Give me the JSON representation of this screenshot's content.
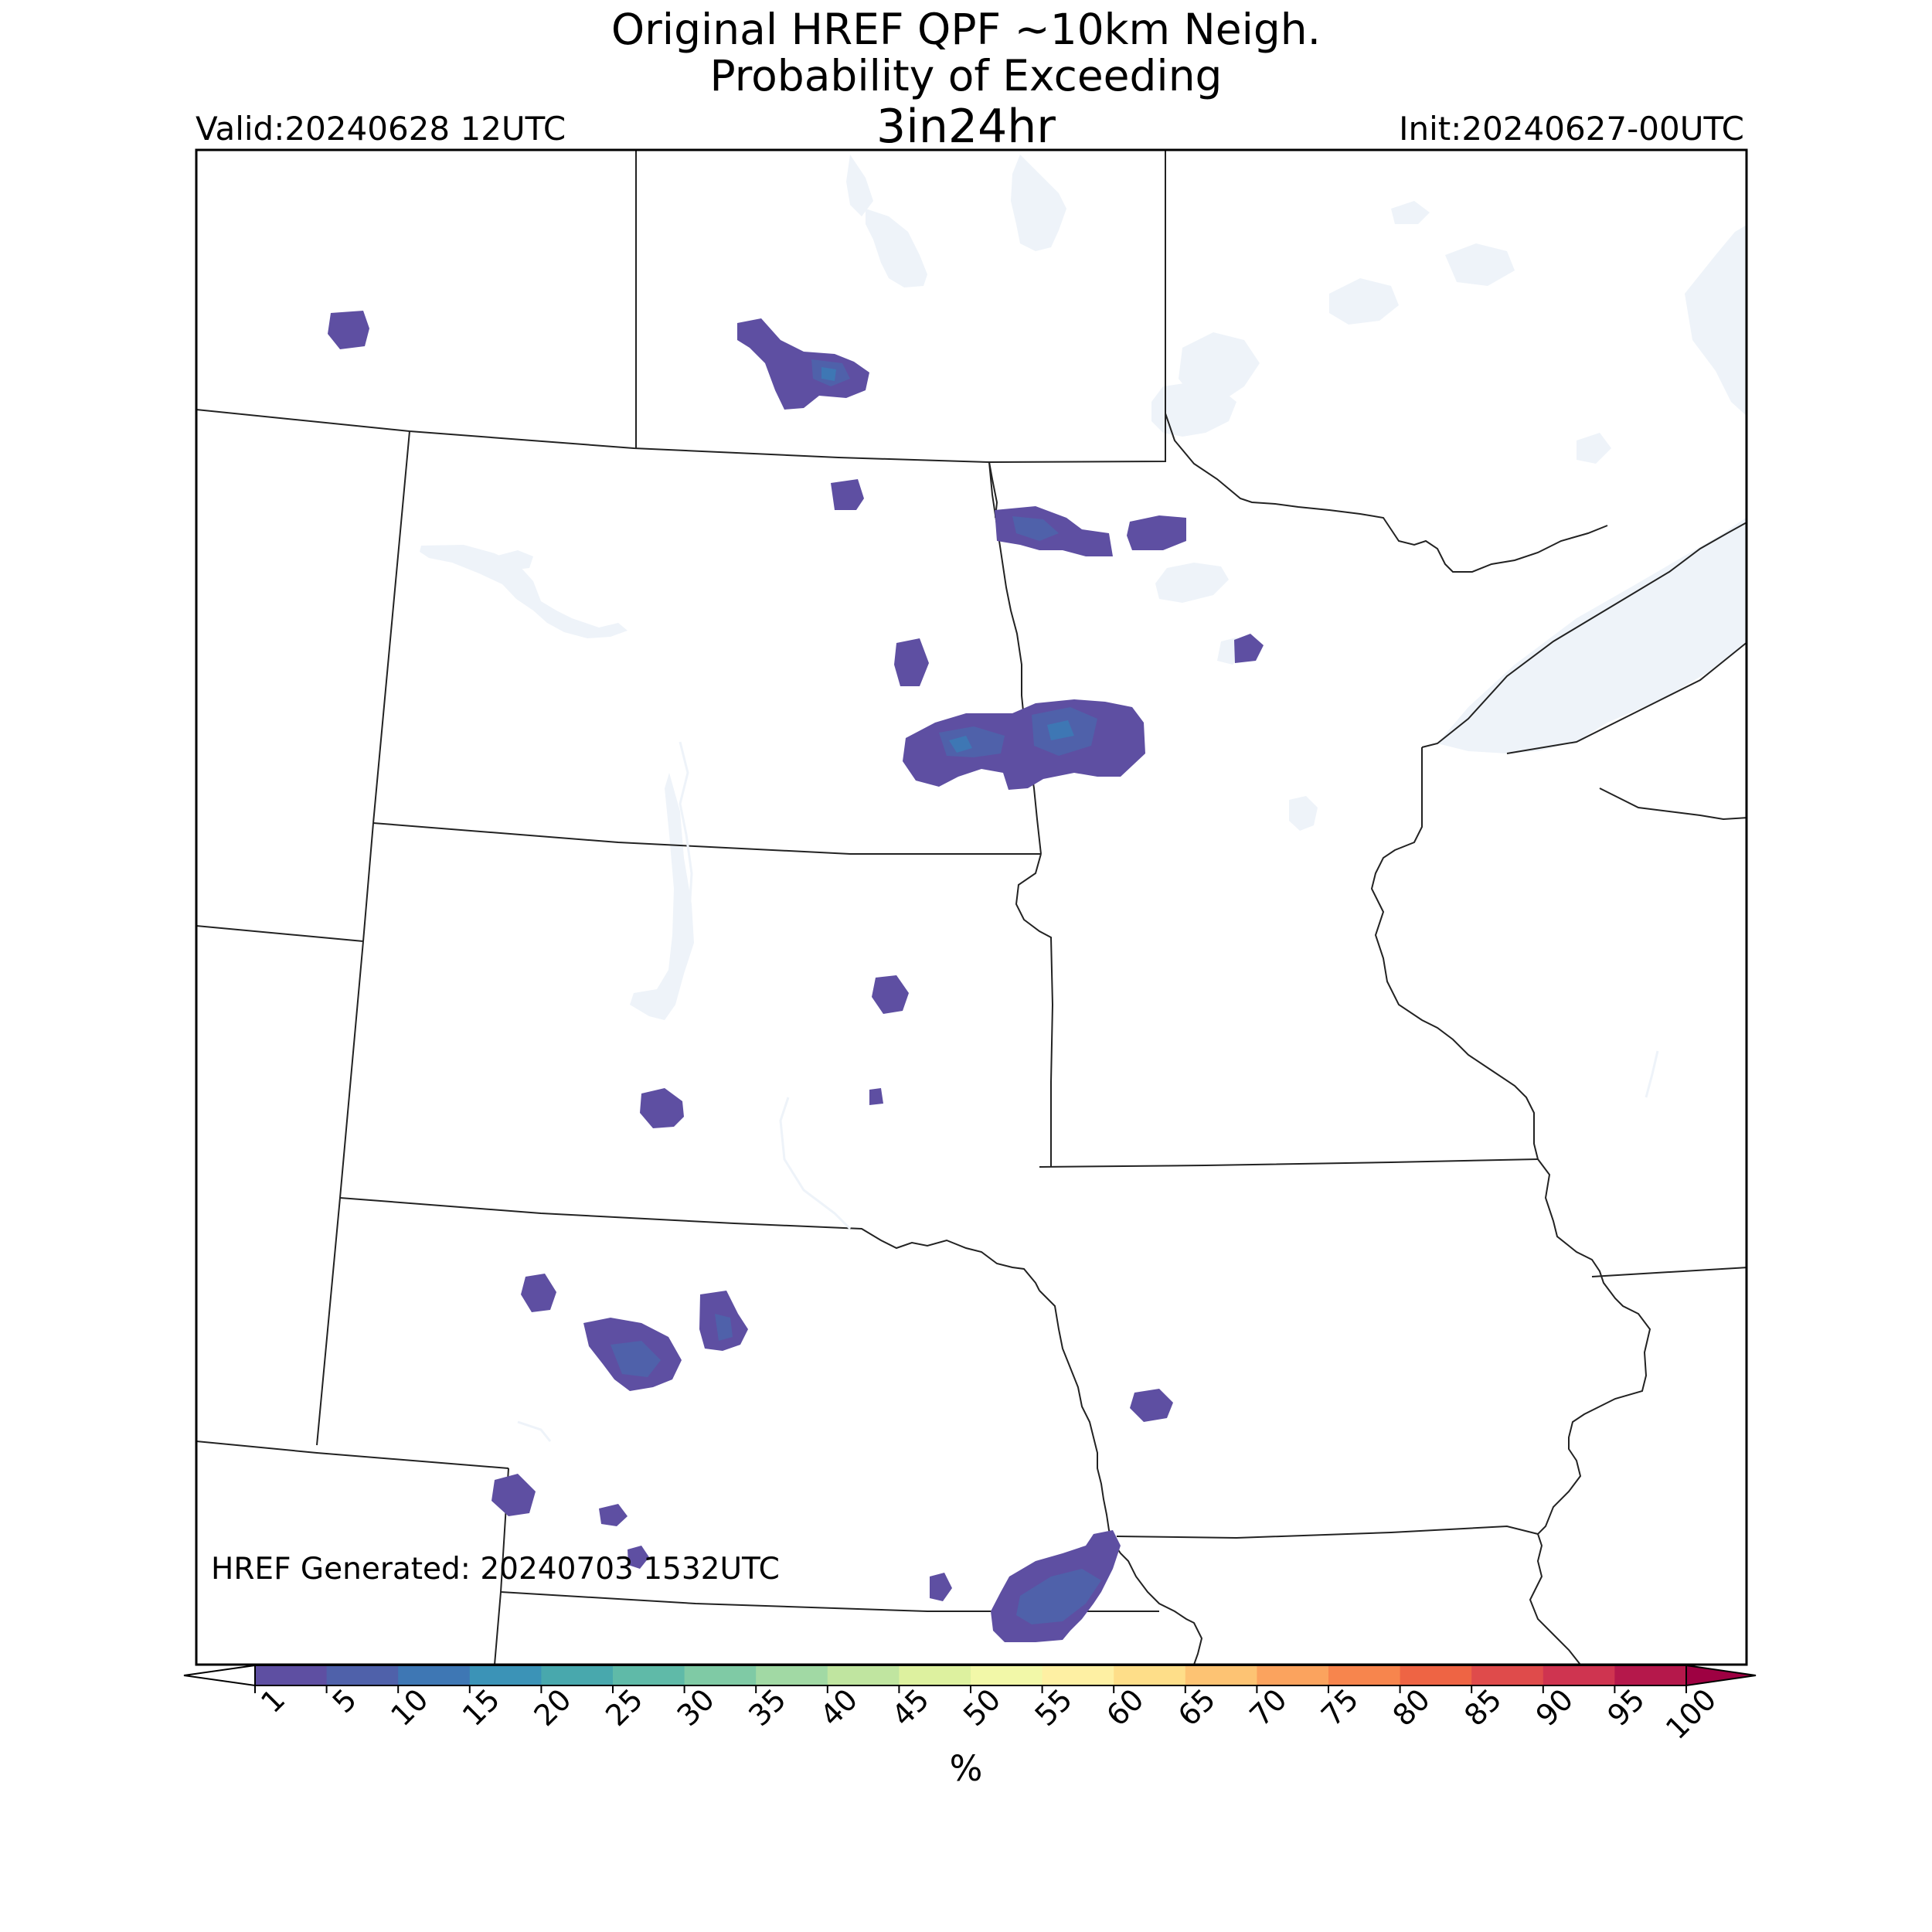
{
  "header": {
    "title_line1": "Original HREF QPF ~10km Neigh.",
    "title_line2": "Probability of Exceeding",
    "title_line3": "3in24hr",
    "valid": "Valid:20240628 12UTC",
    "init": "Init:20240627-00UTC"
  },
  "footer": {
    "generated": "HREF Generated: 20240703 1532UTC"
  },
  "colorbar": {
    "unit": "%",
    "ticks": [
      "1",
      "5",
      "10",
      "15",
      "20",
      "25",
      "30",
      "35",
      "40",
      "45",
      "50",
      "55",
      "60",
      "65",
      "70",
      "75",
      "80",
      "85",
      "90",
      "95",
      "100"
    ],
    "colors": [
      "#5e4fa2",
      "#4f61aa",
      "#3e77b4",
      "#3b93b7",
      "#48a8ad",
      "#5fbaa8",
      "#7fcaa5",
      "#a1d9a4",
      "#c0e5a0",
      "#ddf19f",
      "#f2f8a8",
      "#fef0a3",
      "#fede89",
      "#fdc373",
      "#fba35e",
      "#f7854d",
      "#ee6444",
      "#df4b4b",
      "#cf3450",
      "#b5184b",
      "#9e0142"
    ],
    "extend": "both"
  },
  "colors": {
    "prob_1": "#5e4fa2",
    "prob_5": "#4f61aa",
    "prob_10": "#3e77b4",
    "water": "#eef3f9",
    "border": "#222222"
  },
  "map": {
    "states": [
      "MT",
      "ND",
      "SD",
      "NE",
      "WY",
      "CO",
      "KS",
      "MN",
      "IA",
      "WI",
      "MO",
      "SK",
      "MB",
      "ON"
    ]
  }
}
